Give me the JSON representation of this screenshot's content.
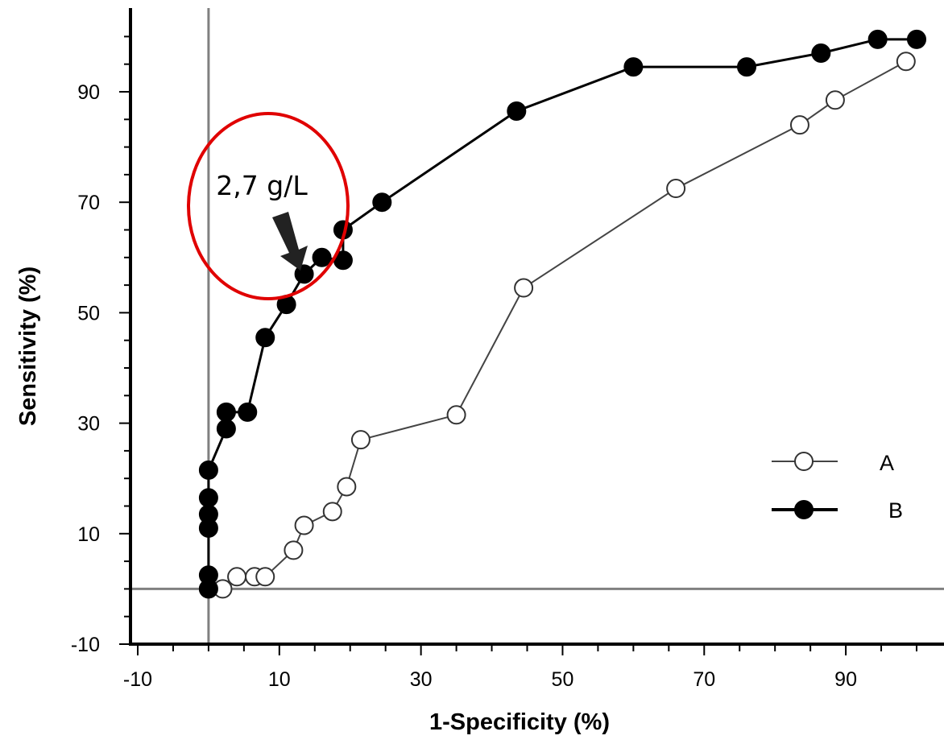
{
  "chart_data": {
    "type": "line",
    "title": "",
    "xlabel": "1-Specificity (%)",
    "ylabel": "Sensitivity (%)",
    "xlim": [
      -12,
      104
    ],
    "ylim": [
      -10,
      104
    ],
    "x_ticks": [
      -10,
      10,
      30,
      50,
      70,
      90
    ],
    "y_ticks": [
      -10,
      10,
      30,
      50,
      70,
      90
    ],
    "reference_lines": {
      "x": 0,
      "y": 0
    },
    "grid": false,
    "legend_position": "bottom-right",
    "series": [
      {
        "name": "A",
        "marker": "open-circle",
        "line_color": "#444444",
        "x": [
          0,
          2,
          4,
          6.5,
          8,
          12,
          13.5,
          17.5,
          19.5,
          21.5,
          35,
          44.5,
          66,
          83.5,
          88.5,
          98.5
        ],
        "y": [
          0,
          0,
          2.2,
          2.2,
          2.2,
          7,
          11.5,
          14,
          18.5,
          27,
          31.5,
          54.5,
          72.5,
          84,
          88.5,
          95.5
        ]
      },
      {
        "name": "B",
        "marker": "filled-circle",
        "line_color": "#000000",
        "x": [
          0,
          0,
          0,
          0,
          0,
          0,
          2.5,
          2.5,
          5.5,
          8,
          11,
          13.5,
          16,
          19,
          19,
          24.5,
          43.5,
          60,
          76,
          86.5,
          94.5,
          100
        ],
        "y": [
          0,
          2.5,
          11,
          13.5,
          16.5,
          21.5,
          29,
          32,
          32,
          45.5,
          51.5,
          57,
          60,
          59.5,
          65,
          70,
          86.5,
          94.5,
          94.5,
          97,
          99.5,
          99.5
        ]
      }
    ],
    "annotations": [
      {
        "text": "2,7 g/L",
        "arrow_to": [
          13.5,
          57
        ],
        "circle_color": "#e00000"
      }
    ]
  }
}
